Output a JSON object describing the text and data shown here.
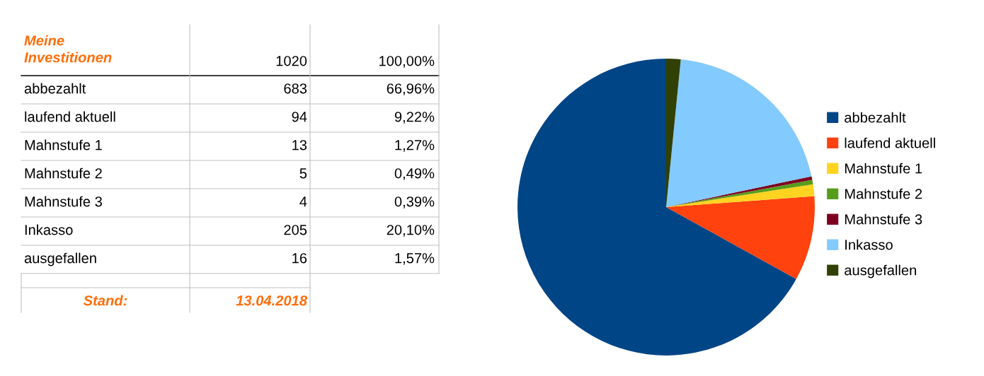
{
  "chart_data": [
    {
      "type": "other",
      "title": "Meine Investitionen",
      "annotations": [
        "1020",
        "100,00%",
        "abbezahlt",
        "683",
        "66,96%",
        "laufend aktuell",
        "94",
        "9,22%",
        "Mahnstufe 1",
        "13",
        "1,27%",
        "Mahnstufe 2",
        "5",
        "0,49%",
        "Mahnstufe 3",
        "4",
        "0,39%",
        "Inkasso",
        "205",
        "20,10%",
        "ausgefallen",
        "16",
        "1,57%",
        "Stand:",
        "13.04.2018"
      ]
    },
    {
      "type": "pie",
      "categories": [
        "abbezahlt",
        "laufend aktuell",
        "Mahnstufe 1",
        "Mahnstufe 2",
        "Mahnstufe 3",
        "Inkasso",
        "ausgefallen"
      ],
      "values": [
        66.96,
        9.22,
        1.27,
        0.49,
        0.39,
        20.1,
        1.57
      ],
      "colors": [
        "#004586",
        "#ff420e",
        "#ffd320",
        "#579d1c",
        "#7e0021",
        "#83caff",
        "#314004"
      ],
      "legend": "right"
    }
  ]
}
